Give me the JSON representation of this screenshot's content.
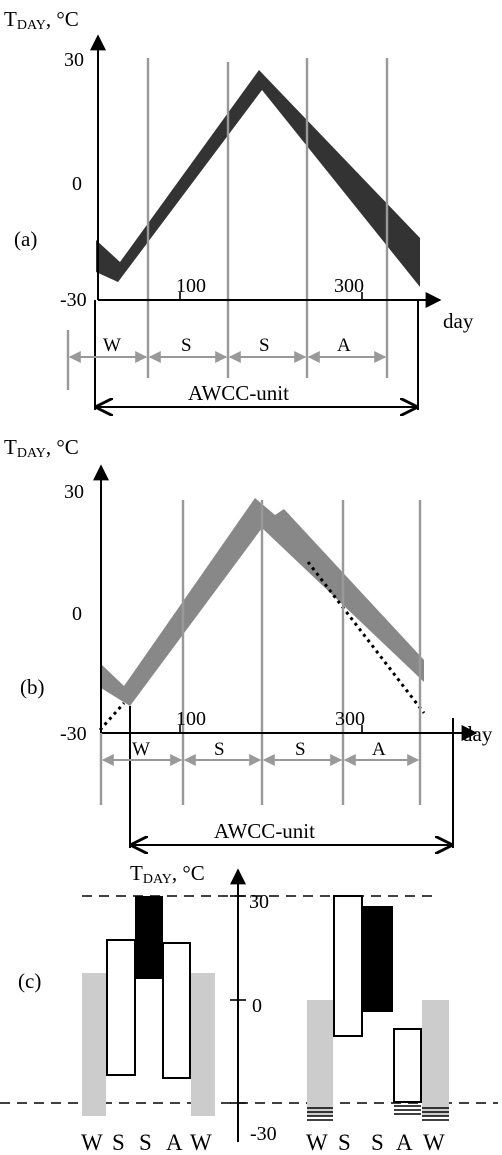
{
  "panel_a": {
    "panel_label": "(a)",
    "y_axis_T": "T",
    "y_axis_sub": "DAY",
    "y_axis_unit": ", °C",
    "y_ticks": [
      "30",
      "0",
      "-30"
    ],
    "x_ticks": [
      "100",
      "300"
    ],
    "x_label": "day",
    "seasons": [
      "W",
      "S",
      "S",
      "A"
    ],
    "unit_label": "AWCC-unit"
  },
  "panel_b": {
    "panel_label": "(b)",
    "y_axis_T": "T",
    "y_axis_sub": "DAY",
    "y_axis_unit": ", °C",
    "y_ticks": [
      "30",
      "0",
      "-30"
    ],
    "x_ticks": [
      "100",
      "300"
    ],
    "x_label": "day",
    "seasons": [
      "W",
      "S",
      "S",
      "A"
    ],
    "unit_label": "AWCC-unit"
  },
  "panel_c": {
    "panel_label": "(c)",
    "y_axis_T": "T",
    "y_axis_sub": "DAY",
    "y_axis_unit": ", °C",
    "y_ticks": [
      "30",
      "0",
      "-30"
    ],
    "left_seasons": [
      "W",
      "S",
      "S",
      "A",
      "W"
    ],
    "right_seasons": [
      "W",
      "S",
      "S",
      "A",
      "W"
    ]
  },
  "colors": {
    "band_a": "#333333",
    "band_b": "#888888",
    "season_lines": "#999999",
    "winter_bar": "#cccccc",
    "summer_bar": "#000000"
  }
}
